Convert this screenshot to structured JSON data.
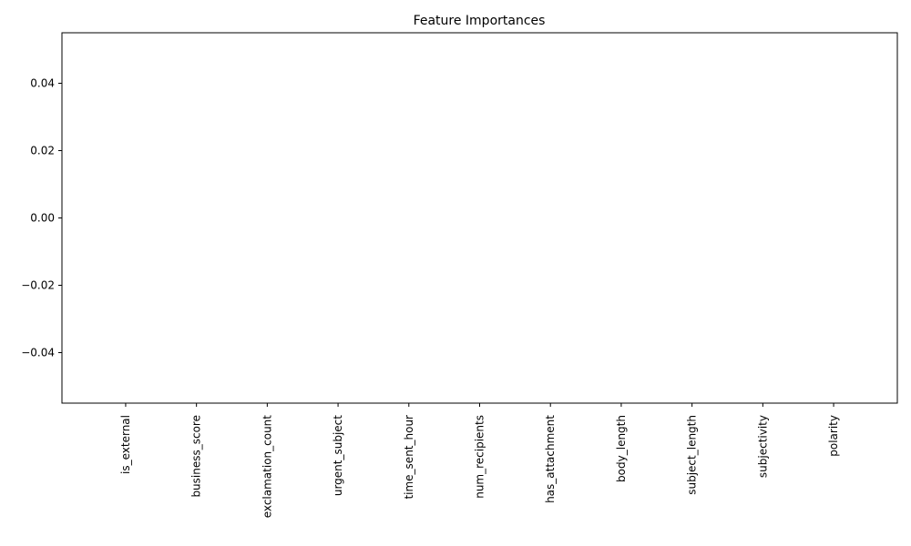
{
  "chart_data": {
    "type": "bar",
    "title": "Feature Importances",
    "xlabel": "",
    "ylabel": "",
    "categories": [
      "is_external",
      "business_score",
      "exclamation_count",
      "urgent_subject",
      "time_sent_hour",
      "num_recipients",
      "has_attachment",
      "body_length",
      "subject_length",
      "subjectivity",
      "polarity"
    ],
    "values": [
      0,
      0,
      0,
      0,
      0,
      0,
      0,
      0,
      0,
      0,
      0
    ],
    "ylim": [
      -0.055,
      0.055
    ],
    "yticks": [
      0.04,
      0.02,
      0.0,
      -0.02,
      -0.04
    ],
    "ytick_labels": [
      "0.04",
      "0.02",
      "0.00",
      "−0.02",
      "−0.04"
    ],
    "grid": false,
    "bar_color": "#1f77b4"
  }
}
